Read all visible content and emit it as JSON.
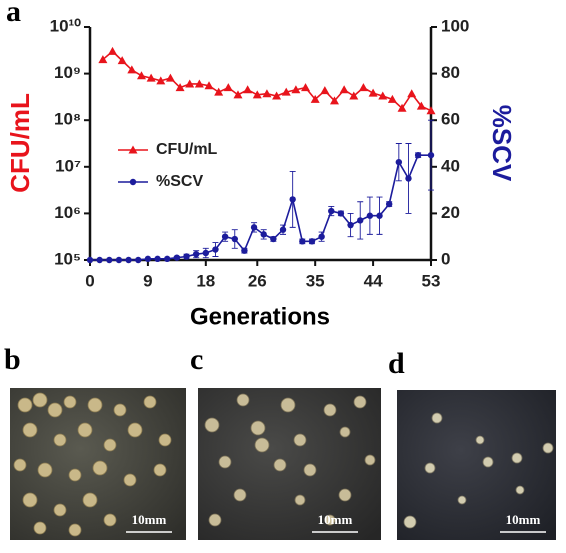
{
  "chart_data": {
    "type": "line",
    "panel_label": "a",
    "xlabel": "Generations",
    "ylabel": "CFU/mL",
    "y2label": "%SCV",
    "xlim": [
      0,
      53
    ],
    "xticks": [
      0,
      9,
      18,
      26,
      35,
      44,
      53
    ],
    "ylim": [
      100000,
      10000000000
    ],
    "log_y": true,
    "yticks": [
      {
        "value": 100000,
        "label": "10⁵"
      },
      {
        "value": 1000000,
        "label": "10⁶"
      },
      {
        "value": 10000000,
        "label": "10⁷"
      },
      {
        "value": 100000000,
        "label": "10⁸"
      },
      {
        "value": 1000000000,
        "label": "10⁹"
      },
      {
        "value": 10000000000,
        "label": "10¹⁰"
      }
    ],
    "y2lim": [
      0,
      100
    ],
    "y2ticks": [
      0,
      20,
      40,
      60,
      80,
      100
    ],
    "legend": "center-left",
    "series": [
      {
        "name": "CFU/mL",
        "color": "#e8141c",
        "marker": "triangle",
        "x": [
          2,
          3.5,
          5,
          6.5,
          8,
          9.5,
          11,
          12.5,
          14,
          15.5,
          17,
          18.5,
          20,
          21.5,
          23,
          24.5,
          26,
          27.5,
          29,
          30.5,
          32,
          33.5,
          35,
          36.5,
          38,
          39.5,
          41,
          42.5,
          44,
          45.5,
          47,
          48.5,
          50,
          51.5,
          53
        ],
        "values": [
          2000000000,
          3000000000,
          1900000000,
          1200000000,
          900000000,
          800000000,
          700000000,
          800000000,
          500000000,
          600000000,
          600000000,
          550000000,
          400000000,
          500000000,
          350000000,
          450000000,
          350000000,
          370000000,
          330000000,
          400000000,
          450000000,
          500000000,
          280000000,
          430000000,
          260000000,
          450000000,
          330000000,
          500000000,
          380000000,
          330000000,
          280000000,
          180000000,
          370000000,
          200000000,
          160000000
        ]
      },
      {
        "name": "%SCV",
        "color": "#1c1c9c",
        "marker": "circle",
        "axis": "y2",
        "x": [
          0,
          1.5,
          3,
          4.5,
          6,
          7.5,
          9,
          10.5,
          12,
          13.5,
          15,
          16.5,
          18,
          19.5,
          21,
          22.5,
          24,
          25.5,
          27,
          28.5,
          30,
          31.5,
          33,
          34.5,
          36,
          37.5,
          39,
          40.5,
          42,
          43.5,
          45,
          46.5,
          48,
          49.5,
          51,
          53
        ],
        "values": [
          0,
          0,
          0,
          0,
          0,
          0,
          0.5,
          0.5,
          0.5,
          1,
          1.5,
          2.5,
          3,
          4.5,
          10,
          9,
          4,
          14,
          11,
          9,
          13,
          26,
          8,
          8,
          10,
          21,
          20,
          15,
          17,
          19,
          19,
          24,
          42,
          35,
          45,
          45
        ],
        "errors": [
          0,
          0,
          0,
          0,
          0,
          0,
          0,
          0,
          0,
          0.5,
          1,
          1.5,
          2,
          3,
          2,
          4,
          1,
          2,
          2,
          1,
          2,
          12,
          1,
          1,
          2,
          2,
          1,
          5,
          8,
          8,
          8,
          1,
          8,
          15,
          1,
          15
        ]
      }
    ]
  },
  "photos": [
    {
      "label": "b",
      "scale": "10mm"
    },
    {
      "label": "c",
      "scale": "10mm"
    },
    {
      "label": "d",
      "scale": "10mm"
    }
  ]
}
